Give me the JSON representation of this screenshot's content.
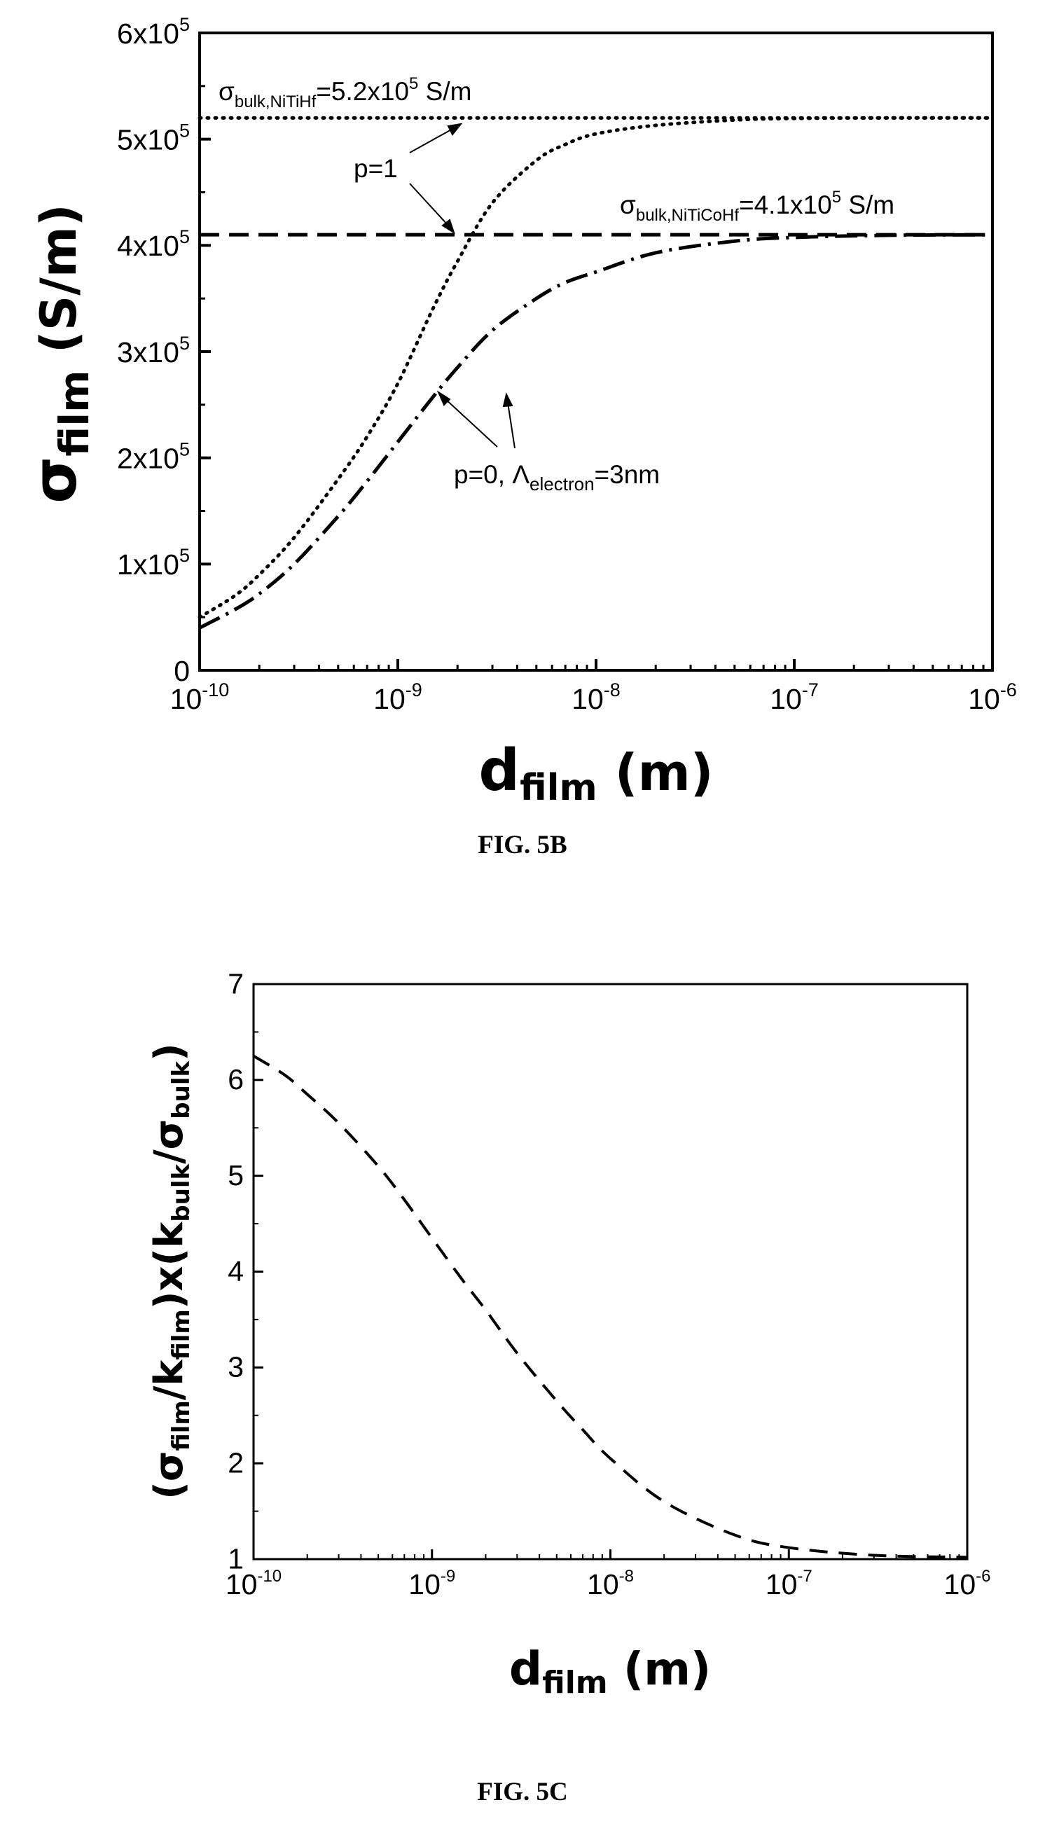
{
  "figures": [
    {
      "caption": "FIG. 5B",
      "ylabel_main": "σ",
      "ylabel_sub": "film",
      "ylabel_unit": " (S/m)",
      "xlabel_main": "d",
      "xlabel_sub": "film",
      "xlabel_unit": " (m)",
      "annotations": {
        "bulk_nitihf": {
          "sym": "σ",
          "sub": "bulk,NiTiHf",
          "mid": "=5.2x10",
          "sup": "5",
          "tail": " S/m"
        },
        "bulk_niticohf": {
          "sym": "σ",
          "sub": "bulk,NiTiCoHf",
          "mid": "=4.1x10",
          "sup": "5",
          "tail": " S/m"
        },
        "p1": "p=1",
        "p0": {
          "pre": "p=0, ",
          "sym": "Λ",
          "sub": "electron",
          "post": "=3nm"
        }
      }
    },
    {
      "caption": "FIG. 5C",
      "ylabel": {
        "p1": "(σ",
        "s1": "film",
        "p2": "/k",
        "s2": "film",
        "p3": ")x(k",
        "s3": "bulk",
        "p4": "/σ",
        "s4": "bulk",
        "p5": ")"
      },
      "xlabel_main": "d",
      "xlabel_sub": "film",
      "xlabel_unit": " (m)"
    }
  ],
  "chart_data": [
    {
      "type": "line",
      "title": "",
      "xscale": "log",
      "xlim": [
        1e-10,
        1e-06
      ],
      "ylim": [
        0,
        600000
      ],
      "xticks": [
        {
          "value": 1e-10,
          "base": "10",
          "exp": "-10"
        },
        {
          "value": 1e-09,
          "base": "10",
          "exp": "-9"
        },
        {
          "value": 1e-08,
          "base": "10",
          "exp": "-8"
        },
        {
          "value": 1e-07,
          "base": "10",
          "exp": "-7"
        },
        {
          "value": 1e-06,
          "base": "10",
          "exp": "-6"
        }
      ],
      "yticks": [
        {
          "value": 0,
          "main": "0",
          "exp": ""
        },
        {
          "value": 100000,
          "main": "1x10",
          "exp": "5"
        },
        {
          "value": 200000,
          "main": "2x10",
          "exp": "5"
        },
        {
          "value": 300000,
          "main": "3x10",
          "exp": "5"
        },
        {
          "value": 400000,
          "main": "4x10",
          "exp": "5"
        },
        {
          "value": 500000,
          "main": "5x10",
          "exp": "5"
        },
        {
          "value": 600000,
          "main": "6x10",
          "exp": "5"
        }
      ],
      "grid": false,
      "series": [
        {
          "style": "dotted",
          "x": [
            1e-06
          ],
          "y": [
            520000
          ]
        },
        {
          "style": "dashed",
          "x": [
            1e-06
          ],
          "y": [
            410000
          ]
        },
        {
          "style": "dotted",
          "x": [
            1e-10,
            1.5e-10,
            2e-10,
            3e-10,
            5e-10,
            7e-10,
            1e-09,
            1.5e-09,
            2e-09,
            3e-09,
            5e-09,
            7e-09,
            1e-08,
            2e-08,
            5e-08,
            1e-07,
            3e-07,
            1e-06
          ],
          "y": [
            50000,
            70000,
            90000,
            125000,
            180000,
            220000,
            270000,
            340000,
            385000,
            440000,
            480000,
            495000,
            505000,
            513000,
            518000,
            519500,
            520000,
            520000
          ]
        },
        {
          "style": "dashdot",
          "x": [
            1e-10,
            1.5e-10,
            2e-10,
            3e-10,
            5e-10,
            7e-10,
            1e-09,
            1.5e-09,
            2e-09,
            3e-09,
            5e-09,
            7e-09,
            1e-08,
            2e-08,
            5e-08,
            1e-07,
            3e-07,
            1e-06
          ],
          "y": [
            40000,
            57000,
            72000,
            100000,
            145000,
            178000,
            215000,
            257000,
            285000,
            320000,
            350000,
            365000,
            375000,
            393000,
            404000,
            407500,
            409500,
            410000
          ]
        }
      ]
    },
    {
      "type": "line",
      "title": "",
      "xscale": "log",
      "xlim": [
        1e-10,
        1e-06
      ],
      "ylim": [
        1,
        7
      ],
      "xticks": [
        {
          "value": 1e-10,
          "base": "10",
          "exp": "-10"
        },
        {
          "value": 1e-09,
          "base": "10",
          "exp": "-9"
        },
        {
          "value": 1e-08,
          "base": "10",
          "exp": "-8"
        },
        {
          "value": 1e-07,
          "base": "10",
          "exp": "-7"
        },
        {
          "value": 1e-06,
          "base": "10",
          "exp": "-6"
        }
      ],
      "yticks": [
        {
          "value": 1,
          "main": "1",
          "exp": ""
        },
        {
          "value": 2,
          "main": "2",
          "exp": ""
        },
        {
          "value": 3,
          "main": "3",
          "exp": ""
        },
        {
          "value": 4,
          "main": "4",
          "exp": ""
        },
        {
          "value": 5,
          "main": "5",
          "exp": ""
        },
        {
          "value": 6,
          "main": "6",
          "exp": ""
        },
        {
          "value": 7,
          "main": "7",
          "exp": ""
        }
      ],
      "grid": false,
      "series": [
        {
          "style": "dashed",
          "x": [
            1e-10,
            1.5e-10,
            2e-10,
            3e-10,
            5e-10,
            7e-10,
            1e-09,
            1.5e-09,
            2e-09,
            3e-09,
            5e-09,
            7e-09,
            1e-08,
            2e-08,
            5e-08,
            1e-07,
            3e-07,
            1e-06
          ],
          "y": [
            6.25,
            6.05,
            5.85,
            5.55,
            5.1,
            4.75,
            4.35,
            3.9,
            3.6,
            3.15,
            2.65,
            2.35,
            2.05,
            1.6,
            1.25,
            1.12,
            1.04,
            1.02
          ]
        }
      ]
    }
  ]
}
